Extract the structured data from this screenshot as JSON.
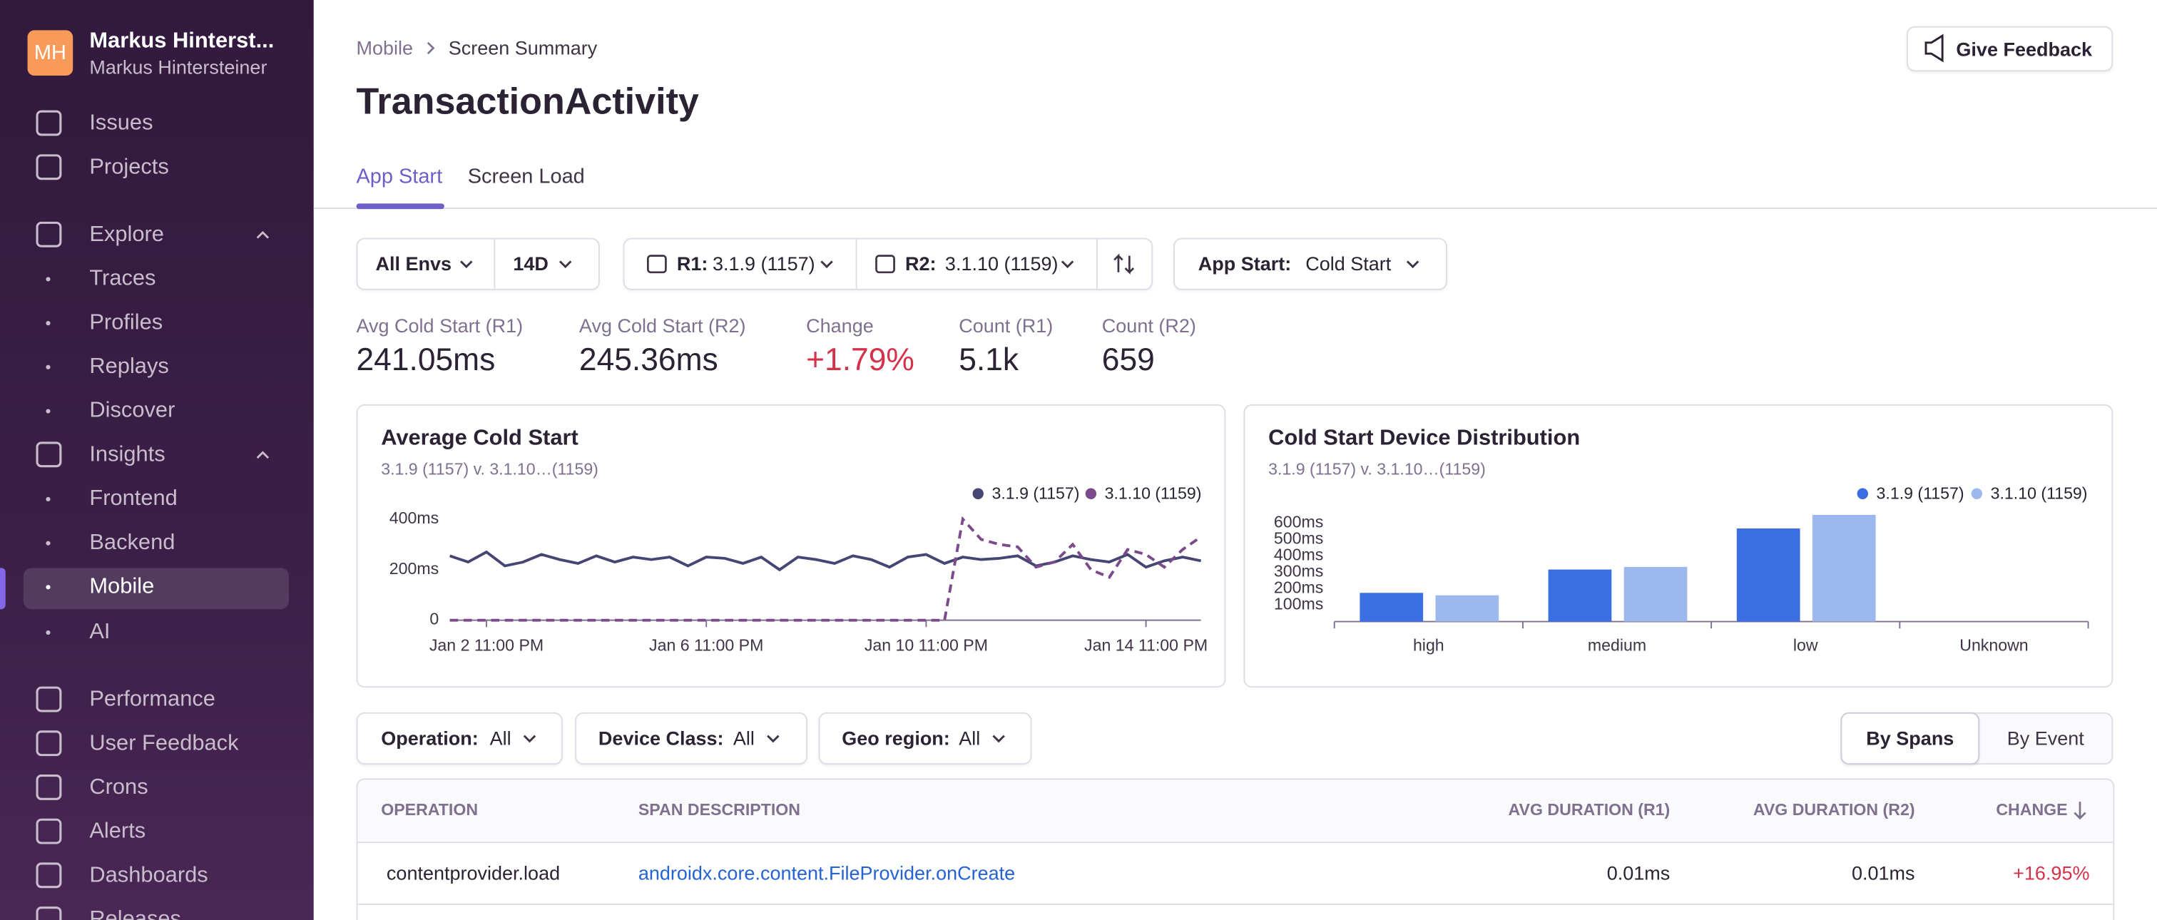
{
  "sidebar": {
    "org_initials": "MH",
    "org_name": "Markus Hinterst...",
    "user_name": "Markus Hintersteiner",
    "nav": [
      "Issues",
      "Projects",
      "Explore",
      "Traces",
      "Profiles",
      "Replays",
      "Discover",
      "Insights",
      "Frontend",
      "Backend",
      "Mobile",
      "AI",
      "Performance",
      "User Feedback",
      "Crons",
      "Alerts",
      "Dashboards",
      "Releases"
    ]
  },
  "header": {
    "breadcrumbs": [
      "Mobile",
      "Screen Summary"
    ],
    "title": "TransactionActivity",
    "feedback_button": "Give Feedback"
  },
  "tabs": [
    "App Start",
    "Screen Load"
  ],
  "filters": {
    "env": "All Envs",
    "period": "14D",
    "r1_label": "R1:",
    "r1_value": "3.1.9 (1157)",
    "r2_label": "R2:",
    "r2_value": "3.1.10 (1159)",
    "app_start_label": "App Start:",
    "app_start_value": "Cold Start"
  },
  "metrics": [
    {
      "label": "Avg Cold Start (R1)",
      "value": "241.05ms"
    },
    {
      "label": "Avg Cold Start (R2)",
      "value": "245.36ms"
    },
    {
      "label": "Change",
      "value": "+1.79%"
    },
    {
      "label": "Count (R1)",
      "value": "5.1k"
    },
    {
      "label": "Count (R2)",
      "value": "659"
    }
  ],
  "chart_data": [
    {
      "type": "line",
      "title": "Average Cold Start",
      "subtitle": "3.1.9 (1157) v. 3.1.10…(1159)",
      "categories": [
        null,
        null,
        "Jan 2 11:00 PM",
        null,
        null,
        null,
        null,
        null,
        null,
        null,
        null,
        null,
        null,
        null,
        "Jan 6 11:00 PM",
        null,
        null,
        null,
        null,
        null,
        null,
        null,
        null,
        null,
        null,
        null,
        "Jan 10 11:00 PM",
        null,
        null,
        null,
        null,
        null,
        null,
        null,
        null,
        null,
        null,
        null,
        "Jan 14 11:00 PM",
        null,
        null,
        null
      ],
      "series": [
        {
          "name": "3.1.9 (1157)",
          "color": "#444674",
          "line_style": "solid",
          "values": [
            255,
            230,
            270,
            215,
            230,
            260,
            240,
            225,
            255,
            230,
            250,
            240,
            250,
            215,
            250,
            245,
            225,
            250,
            200,
            250,
            240,
            225,
            255,
            240,
            210,
            250,
            260,
            225,
            250,
            240,
            245,
            255,
            215,
            230,
            255,
            240,
            230,
            260,
            210,
            235,
            250,
            235
          ]
        },
        {
          "name": "3.1.10 (1159)",
          "color": "#7a4a8a",
          "line_style": "dashed",
          "values": [
            0,
            0,
            0,
            0,
            0,
            0,
            0,
            0,
            0,
            0,
            0,
            0,
            0,
            0,
            0,
            0,
            0,
            0,
            0,
            0,
            0,
            0,
            0,
            0,
            0,
            0,
            0,
            0,
            400,
            320,
            300,
            290,
            210,
            230,
            300,
            200,
            170,
            280,
            260,
            210,
            280,
            330
          ]
        }
      ],
      "ylim": [
        0,
        430
      ],
      "yticks": [
        0,
        {
          "value": 200,
          "label": "200ms"
        },
        {
          "value": 400,
          "label": "400ms"
        }
      ],
      "grid": false,
      "legend": "top-right"
    },
    {
      "type": "bar",
      "title": "Cold Start Device Distribution",
      "subtitle": "3.1.9 (1157) v. 3.1.10…(1159)",
      "categories": [
        "high",
        "medium",
        "low",
        "Unknown"
      ],
      "series": [
        {
          "name": "3.1.9 (1157)",
          "color": "#3b6ee0",
          "values": [
            175,
            317,
            567,
            0
          ]
        },
        {
          "name": "3.1.10 (1159)",
          "color": "#9db8ec",
          "values": [
            160,
            333,
            650,
            0
          ]
        }
      ],
      "ylim": [
        0,
        670
      ],
      "yticks": [
        {
          "value": 100,
          "label": "100ms"
        },
        {
          "value": 200,
          "label": "200ms"
        },
        {
          "value": 300,
          "label": "300ms"
        },
        {
          "value": 400,
          "label": "400ms"
        },
        {
          "value": 500,
          "label": "500ms"
        },
        {
          "value": 600,
          "label": "600ms"
        }
      ],
      "grid": false,
      "legend": "top-right"
    }
  ],
  "table_filters": [
    {
      "label": "Operation:",
      "value": "All"
    },
    {
      "label": "Device Class:",
      "value": "All"
    },
    {
      "label": "Geo region:",
      "value": "All"
    }
  ],
  "view_toggle": [
    "By Spans",
    "By Event"
  ],
  "table": {
    "columns": [
      "OPERATION",
      "SPAN DESCRIPTION",
      "AVG DURATION (R1)",
      "AVG DURATION (R2)",
      "CHANGE"
    ],
    "rows": [
      [
        "contentprovider.load",
        "androidx.core.content.FileProvider.onCreate",
        "0.01ms",
        "0.01ms",
        "+16.95%"
      ]
    ]
  }
}
